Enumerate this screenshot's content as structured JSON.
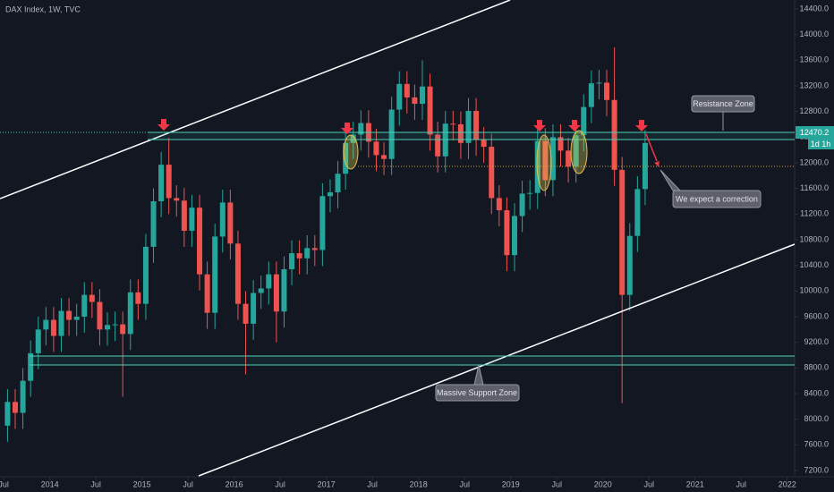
{
  "chart_data": {
    "type": "candlestick",
    "title": "DAX Index, 1W, TVC",
    "x": [
      "2013-07",
      "2013-08",
      "2013-09",
      "2013-10",
      "2013-11",
      "2013-12",
      "2014-01",
      "2014-02",
      "2014-03",
      "2014-04",
      "2014-05",
      "2014-06",
      "2014-07",
      "2014-08",
      "2014-09",
      "2014-10",
      "2014-11",
      "2014-12",
      "2015-01",
      "2015-02",
      "2015-03",
      "2015-04",
      "2015-05",
      "2015-06",
      "2015-07",
      "2015-08",
      "2015-09",
      "2015-10",
      "2015-11",
      "2015-12",
      "2016-01",
      "2016-02",
      "2016-03",
      "2016-04",
      "2016-05",
      "2016-06",
      "2016-07",
      "2016-08",
      "2016-09",
      "2016-10",
      "2016-11",
      "2016-12",
      "2017-01",
      "2017-02",
      "2017-03",
      "2017-04",
      "2017-05",
      "2017-06",
      "2017-07",
      "2017-08",
      "2017-09",
      "2017-10",
      "2017-11",
      "2017-12",
      "2018-01",
      "2018-02",
      "2018-03",
      "2018-04",
      "2018-05",
      "2018-06",
      "2018-07",
      "2018-08",
      "2018-09",
      "2018-10",
      "2018-11",
      "2018-12",
      "2019-01",
      "2019-02",
      "2019-03",
      "2019-04",
      "2019-05",
      "2019-06",
      "2019-07",
      "2019-08",
      "2019-09",
      "2019-10",
      "2019-11",
      "2019-12",
      "2020-01",
      "2020-02",
      "2020-03",
      "2020-04",
      "2020-05",
      "2020-06"
    ],
    "open": [
      7900,
      8270,
      8100,
      8600,
      9030,
      9400,
      9550,
      9300,
      9690,
      9550,
      9600,
      9940,
      9830,
      9400,
      9470,
      9480,
      9330,
      9980,
      9800,
      10690,
      11400,
      11970,
      11450,
      11410,
      10940,
      11300,
      10260,
      9660,
      10850,
      11380,
      10740,
      9800,
      9490,
      9970,
      10040,
      10260,
      9680,
      10340,
      10590,
      10510,
      10670,
      10640,
      11480,
      11540,
      11830,
      12310,
      12440,
      12620,
      12330,
      12120,
      12060,
      12830,
      13230,
      13020,
      12920,
      13190,
      12440,
      12100,
      12610,
      12600,
      12310,
      12810,
      12360,
      12250,
      11450,
      11260,
      10560,
      11170,
      11520,
      11530,
      12340,
      11730,
      12400,
      12190,
      11940,
      12430,
      12870,
      13240,
      13250,
      12980,
      11890,
      9940,
      10860,
      11590
    ],
    "high": [
      8470,
      8470,
      8800,
      9230,
      9600,
      9750,
      9750,
      9890,
      9890,
      9800,
      10140,
      10140,
      10030,
      9670,
      9680,
      9680,
      10180,
      10180,
      10890,
      11600,
      12170,
      12390,
      11650,
      11610,
      11500,
      11500,
      10460,
      11050,
      11580,
      11580,
      10940,
      10000,
      10170,
      10240,
      10460,
      10460,
      10540,
      10790,
      10790,
      10870,
      10870,
      11680,
      11740,
      12030,
      12510,
      12640,
      12820,
      12820,
      12530,
      12320,
      13030,
      13430,
      13430,
      13220,
      13600,
      13390,
      12640,
      12810,
      12810,
      12800,
      13010,
      13010,
      12560,
      12450,
      11650,
      11460,
      11370,
      11720,
      11730,
      12540,
      12540,
      12600,
      12600,
      12390,
      12630,
      13070,
      13440,
      13450,
      13450,
      13800,
      12090,
      11060,
      11790,
      12510
    ],
    "low": [
      7650,
      7850,
      7850,
      8350,
      8780,
      9150,
      9050,
      9050,
      9300,
      9300,
      9350,
      9580,
      9150,
      9150,
      9220,
      8350,
      9080,
      9550,
      9550,
      10440,
      11150,
      11200,
      11160,
      10690,
      10690,
      10010,
      9410,
      9410,
      10600,
      10490,
      9550,
      8700,
      9240,
      9720,
      9790,
      9200,
      9430,
      10090,
      10260,
      10260,
      10390,
      10390,
      11230,
      11290,
      11580,
      12060,
      12190,
      12080,
      11870,
      11810,
      11810,
      12580,
      12770,
      12670,
      12670,
      12190,
      11850,
      11850,
      12350,
      12060,
      12060,
      12110,
      12000,
      11200,
      11010,
      10310,
      10310,
      10920,
      11270,
      11280,
      11480,
      11480,
      11940,
      11690,
      11690,
      12180,
      12620,
      12990,
      12730,
      11640,
      8250,
      9690,
      10610,
      11340
    ],
    "close": [
      8270,
      8100,
      8600,
      9030,
      9400,
      9550,
      9300,
      9690,
      9550,
      9600,
      9940,
      9830,
      9400,
      9470,
      9480,
      9330,
      9980,
      9800,
      10690,
      11400,
      11970,
      11450,
      11410,
      10940,
      11300,
      10260,
      9660,
      10850,
      11380,
      10740,
      9800,
      9490,
      9970,
      10040,
      10260,
      9680,
      10340,
      10590,
      10510,
      10670,
      10640,
      11480,
      11540,
      11830,
      12310,
      12440,
      12620,
      12330,
      12120,
      12060,
      12830,
      13230,
      13020,
      12920,
      13190,
      12440,
      12100,
      12610,
      12600,
      12310,
      12810,
      12360,
      12250,
      11450,
      11260,
      10560,
      11170,
      11520,
      11530,
      12340,
      11730,
      12400,
      12190,
      11940,
      12430,
      12870,
      13240,
      13250,
      12980,
      11890,
      9940,
      10860,
      11590,
      12310
    ],
    "up_color": "#26a69a",
    "down_color": "#ef5350",
    "xlim": [
      2013.46,
      2022.08
    ],
    "xticks": [
      {
        "value": 2013.5,
        "label": "Jul"
      },
      2014,
      {
        "value": 2014.5,
        "label": "Jul"
      },
      2015,
      {
        "value": 2015.5,
        "label": "Jul"
      },
      2016,
      {
        "value": 2016.5,
        "label": "Jul"
      },
      2017,
      {
        "value": 2017.5,
        "label": "Jul"
      },
      2018,
      {
        "value": 2018.5,
        "label": "Jul"
      },
      2019,
      {
        "value": 2019.5,
        "label": "Jul"
      },
      2020,
      {
        "value": 2020.5,
        "label": "Jul"
      },
      2021,
      {
        "value": 2021.5,
        "label": "Jul"
      },
      2022
    ],
    "ylim": [
      7200,
      14400
    ],
    "yticks": [
      {
        "value": 7200,
        "label": "7200.0"
      },
      {
        "value": 7600,
        "label": "7600.0"
      },
      {
        "value": 8000,
        "label": "8000.0"
      },
      {
        "value": 8400,
        "label": "8400.0"
      },
      {
        "value": 8800,
        "label": "8800.0"
      },
      {
        "value": 9200,
        "label": "9200.0"
      },
      {
        "value": 9600,
        "label": "9600.0"
      },
      {
        "value": 10000,
        "label": "10000.0"
      },
      {
        "value": 10400,
        "label": "10400.0"
      },
      {
        "value": 10800,
        "label": "10800.0"
      },
      {
        "value": 11200,
        "label": "11200.0"
      },
      {
        "value": 11600,
        "label": "11600.0"
      },
      {
        "value": 12000,
        "label": "12000.0"
      },
      {
        "value": 12400,
        "label": "12400.0"
      },
      {
        "value": 12800,
        "label": "12800.0"
      },
      {
        "value": 13200,
        "label": "13200.0"
      },
      {
        "value": 13600,
        "label": "13600.0"
      },
      {
        "value": 14000,
        "label": "14000.0"
      },
      {
        "value": 14400,
        "label": "14400.0"
      }
    ],
    "grid": false,
    "price_label": {
      "value": 12470.2,
      "label": "12470.2"
    },
    "countdown": "1d 1h",
    "annotations": {
      "resistance": "Resistance Zone",
      "correction": "We expect a correction",
      "support": "Massive Support Zone"
    }
  }
}
